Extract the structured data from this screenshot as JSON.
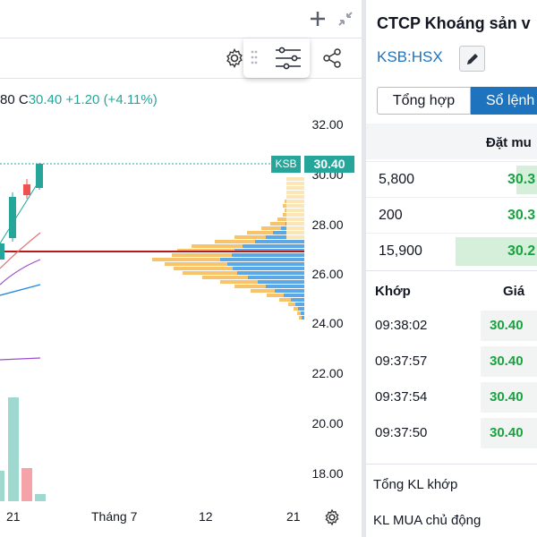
{
  "chart": {
    "ohlc": {
      "open_tail": "80",
      "close_key": "C",
      "close": "30.40",
      "change": "+1.20",
      "change_pct": "(+4.11%)"
    },
    "ticker_tag": "KSB",
    "last_price_tag": "30.40",
    "price_axis": [
      "32.00",
      "30.00",
      "28.00",
      "26.00",
      "24.00",
      "22.00",
      "20.00",
      "18.00"
    ],
    "date_axis": [
      "21",
      "Tháng 7",
      "12",
      "21"
    ],
    "colors": {
      "up": "#26a69a",
      "down": "#ef5350",
      "profile_blue": "#5aa9e6",
      "profile_orange": "#f7c46c",
      "poc_line": "#b71c1c"
    },
    "icons": {
      "plus": "plus-icon",
      "collapse": "collapse-arrows-icon",
      "settings": "gear-icon",
      "drag": "drag-handle-icon",
      "menu": "hamburger-menu-icon",
      "share": "share-icon",
      "axis_settings": "gear-icon"
    }
  },
  "book": {
    "title": "CTCP Khoáng sản v",
    "symbol": "KSB:HSX",
    "tabs": [
      "Tổng hợp",
      "Sổ lệnh"
    ],
    "header": "Đặt mu",
    "bids": [
      {
        "volume": "5,800",
        "price": "30.3"
      },
      {
        "volume": "200",
        "price": "30.3"
      },
      {
        "volume": "15,900",
        "price": "30.2"
      }
    ],
    "match_headers": {
      "time": "Khớp",
      "price": "Giá"
    },
    "matches": [
      {
        "time": "09:38:02",
        "price": "30.40"
      },
      {
        "time": "09:37:57",
        "price": "30.40"
      },
      {
        "time": "09:37:54",
        "price": "30.40"
      },
      {
        "time": "09:37:50",
        "price": "30.40"
      }
    ],
    "stats": [
      "Tổng KL khớp",
      "KL MUA chủ động"
    ]
  }
}
